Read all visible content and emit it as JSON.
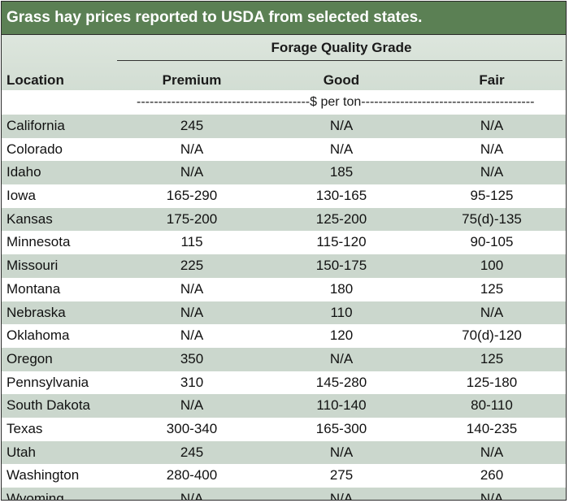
{
  "title": "Grass hay prices reported to USDA from selected states.",
  "header": {
    "group_label": "Forage Quality Grade",
    "location": "Location",
    "premium": "Premium",
    "good": "Good",
    "fair": "Fair"
  },
  "units": "----------------------------------------$ per ton----------------------------------------",
  "rows": [
    {
      "location": "California",
      "premium": "245",
      "good": "N/A",
      "fair": "N/A"
    },
    {
      "location": "Colorado",
      "premium": "N/A",
      "good": "N/A",
      "fair": "N/A"
    },
    {
      "location": "Idaho",
      "premium": "N/A",
      "good": "185",
      "fair": "N/A"
    },
    {
      "location": "Iowa",
      "premium": "165-290",
      "good": "130-165",
      "fair": "95-125"
    },
    {
      "location": "Kansas",
      "premium": "175-200",
      "good": "125-200",
      "fair": "75(d)-135"
    },
    {
      "location": "Minnesota",
      "premium": "115",
      "good": "115-120",
      "fair": "90-105"
    },
    {
      "location": "Missouri",
      "premium": "225",
      "good": "150-175",
      "fair": "100"
    },
    {
      "location": "Montana",
      "premium": "N/A",
      "good": "180",
      "fair": "125"
    },
    {
      "location": "Nebraska",
      "premium": "N/A",
      "good": "110",
      "fair": "N/A"
    },
    {
      "location": "Oklahoma",
      "premium": "N/A",
      "good": "120",
      "fair": "70(d)-120"
    },
    {
      "location": "Oregon",
      "premium": "350",
      "good": "N/A",
      "fair": "125"
    },
    {
      "location": "Pennsylvania",
      "premium": "310",
      "good": "145-280",
      "fair": "125-180"
    },
    {
      "location": "South Dakota",
      "premium": "N/A",
      "good": "110-140",
      "fair": "80-110"
    },
    {
      "location": "Texas",
      "premium": "300-340",
      "good": "165-300",
      "fair": "140-235"
    },
    {
      "location": "Utah",
      "premium": "245",
      "good": "N/A",
      "fair": "N/A"
    },
    {
      "location": "Washington",
      "premium": "280-400",
      "good": "275",
      "fair": "260"
    },
    {
      "location": "Wyoming",
      "premium": "N/A",
      "good": "N/A",
      "fair": "N/A"
    }
  ]
}
